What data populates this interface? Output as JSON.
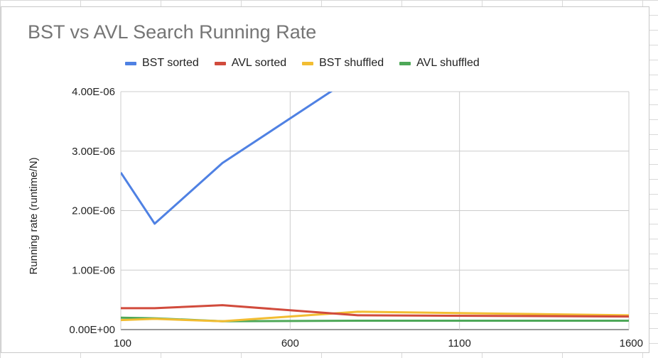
{
  "chart_data": {
    "type": "line",
    "title": "BST vs AVL Search Running Rate",
    "xlabel": "",
    "ylabel": "Running rate (runtime/N)",
    "xlim": [
      100,
      1600
    ],
    "ylim": [
      0,
      4e-06
    ],
    "x_ticks": [
      100,
      600,
      1100,
      1600
    ],
    "x_tick_labels": [
      "100",
      "600",
      "1100",
      "1600"
    ],
    "y_ticks": [
      0,
      1e-06,
      2e-06,
      3e-06,
      4e-06
    ],
    "y_tick_labels": [
      "0.00E+00",
      "1.00E-06",
      "2.00E-06",
      "3.00E-06",
      "4.00E-06"
    ],
    "grid": true,
    "legend_position": "top",
    "series": [
      {
        "name": "BST sorted",
        "color": "#4f81e3",
        "x": [
          100,
          200,
          400,
          800
        ],
        "y": [
          2.64e-06,
          1.78e-06,
          2.8e-06,
          4.3e-06
        ]
      },
      {
        "name": "AVL sorted",
        "color": "#d14b3c",
        "x": [
          100,
          200,
          400,
          800,
          1600
        ],
        "y": [
          3.6e-07,
          3.6e-07,
          4.1e-07,
          2.4e-07,
          2.2e-07
        ]
      },
      {
        "name": "BST shuffled",
        "color": "#f2bd32",
        "x": [
          100,
          200,
          400,
          800,
          1600
        ],
        "y": [
          1.6e-07,
          1.8e-07,
          1.4e-07,
          3e-07,
          2.4e-07
        ]
      },
      {
        "name": "AVL shuffled",
        "color": "#4ea858",
        "x": [
          100,
          200,
          400,
          800,
          1600
        ],
        "y": [
          2e-07,
          1.9e-07,
          1.4e-07,
          1.5e-07,
          1.5e-07
        ]
      }
    ]
  }
}
